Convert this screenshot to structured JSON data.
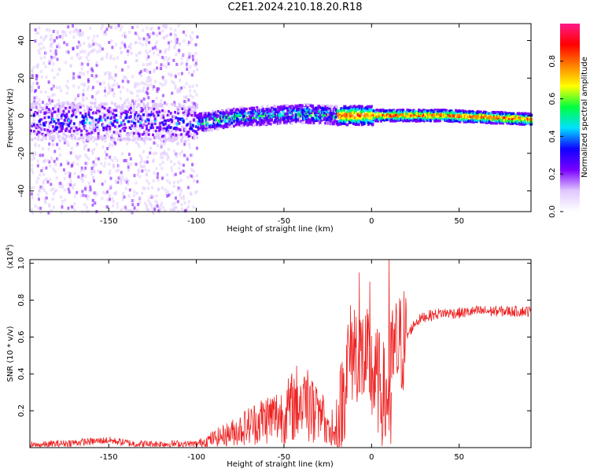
{
  "title": "C2E1.2024.210.18.20.R18",
  "colors": {
    "snr_line": "#ee2222",
    "colormap": [
      "#ffffff",
      "#e0c8ff",
      "#7a00ff",
      "#1000ff",
      "#00e0ff",
      "#00ff40",
      "#ffff00",
      "#ff8000",
      "#ff0000",
      "#ff1a88"
    ]
  },
  "chart_data": [
    {
      "type": "heatmap",
      "xlabel": "Height of straight line (km)",
      "ylabel": "Frequency (Hz)",
      "xlim": [
        -195,
        91
      ],
      "ylim": [
        -51,
        49
      ],
      "xticks": [
        -150,
        -100,
        -50,
        0,
        50
      ],
      "xtick_labels": [
        "-150",
        "-100",
        "-50",
        "0",
        "50"
      ],
      "yticks": [
        40,
        20,
        0,
        -20,
        -40
      ],
      "ytick_labels": [
        "40",
        "20",
        "0",
        "-20",
        "-40"
      ],
      "colorbar": {
        "label": "Normalized spectral amplitude",
        "range": [
          0,
          1
        ],
        "ticks": [
          0.0,
          0.2,
          0.4,
          0.6,
          0.8
        ],
        "tick_labels": [
          "0.0",
          "0.2",
          "0.4",
          "0.6",
          "0.8"
        ]
      },
      "ridge": {
        "description_points": [
          [
            -195,
            -3
          ],
          [
            -150,
            -3
          ],
          [
            -100,
            -4
          ],
          [
            -80,
            -1
          ],
          [
            -60,
            0
          ],
          [
            -40,
            1
          ],
          [
            -20,
            0
          ],
          [
            0,
            0
          ],
          [
            40,
            0
          ],
          [
            91,
            -2
          ]
        ],
        "noise_region_xmax": -100
      }
    },
    {
      "type": "line",
      "xlabel": "Height of straight line (km)",
      "ylabel": "SNR (10 * v/v)",
      "scale_label": "(x10",
      "scale_exp": "4",
      "scale_close": ")",
      "xlim": [
        -195,
        91
      ],
      "ylim": [
        0,
        1.02
      ],
      "xticks": [
        -150,
        -100,
        -50,
        0,
        50
      ],
      "xtick_labels": [
        "-150",
        "-100",
        "-50",
        "0",
        "50"
      ],
      "yticks": [
        0.2,
        0.4,
        0.6,
        0.8,
        1.0
      ],
      "ytick_labels": [
        "0.2",
        "0.4",
        "0.6",
        "0.8",
        "1.0"
      ],
      "series": [
        {
          "x": [
            -195,
            -180,
            -165,
            -150,
            -135,
            -120,
            -105,
            -100,
            -90,
            -80,
            -70,
            -60,
            -50,
            -42,
            -38,
            -32,
            -28,
            -22,
            -18,
            -14,
            -10,
            -6,
            -2,
            0,
            4,
            8,
            10,
            12,
            16,
            20,
            25,
            30,
            35,
            40,
            50,
            60,
            70,
            80,
            91
          ],
          "y": [
            0.01,
            0.02,
            0.03,
            0.04,
            0.02,
            0.02,
            0.02,
            0.02,
            0.05,
            0.08,
            0.12,
            0.16,
            0.18,
            0.25,
            0.24,
            0.18,
            0.12,
            0.05,
            0.15,
            0.45,
            0.55,
            0.5,
            0.45,
            0.4,
            0.35,
            0.25,
            0.3,
            0.5,
            0.55,
            0.6,
            0.68,
            0.71,
            0.72,
            0.73,
            0.73,
            0.74,
            0.74,
            0.74,
            0.74
          ],
          "spikes": [
            [
              -7,
              0.95
            ],
            [
              -1,
              0.9
            ],
            [
              2,
              0.55
            ],
            [
              10,
              1.04
            ],
            [
              11,
              0.02
            ]
          ]
        }
      ]
    }
  ]
}
